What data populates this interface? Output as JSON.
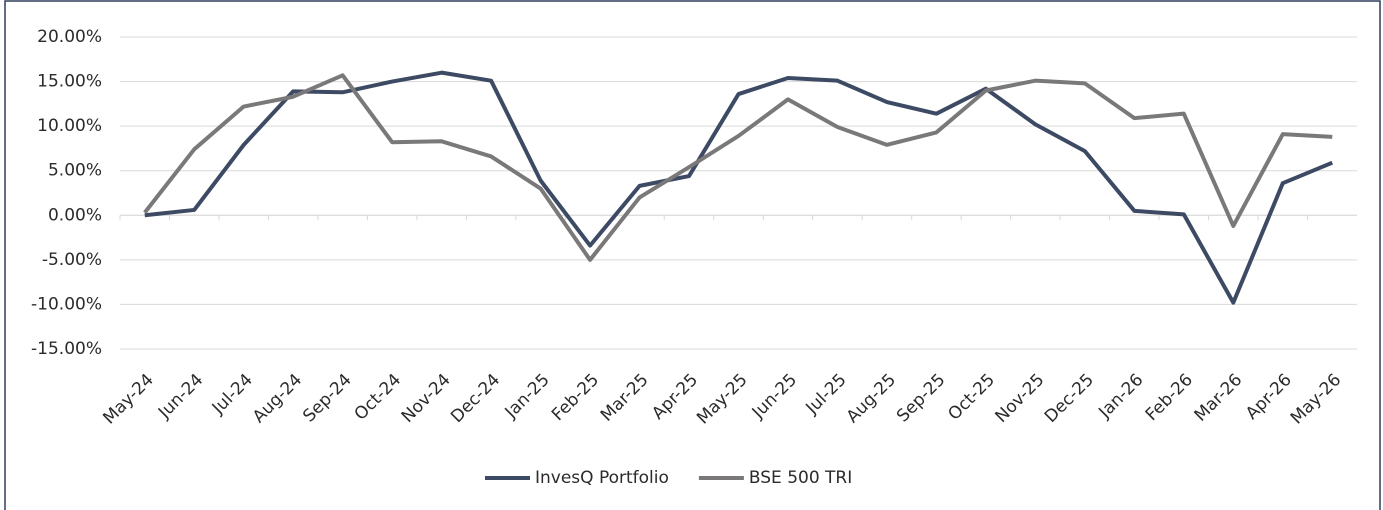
{
  "chart_data": {
    "type": "line",
    "categories": [
      "May-24",
      "Jun-24",
      "Jul-24",
      "Aug-24",
      "Sep-24",
      "Oct-24",
      "Nov-24",
      "Dec-24",
      "Jan-25",
      "Feb-25",
      "Mar-25",
      "Apr-25",
      "May-25",
      "Jun-25",
      "Jul-25",
      "Aug-25",
      "Sep-25",
      "Oct-25",
      "Nov-25",
      "Dec-25",
      "Jan-26",
      "Feb-26",
      "Mar-26",
      "Apr-26",
      "May-26"
    ],
    "series": [
      {
        "name": "InvesQ Portfolio",
        "color": "#3d4a63",
        "values": [
          0.0,
          0.6,
          7.9,
          13.9,
          13.8,
          15.0,
          16.0,
          15.1,
          3.9,
          -3.4,
          3.3,
          4.4,
          13.6,
          15.4,
          15.1,
          12.7,
          11.4,
          14.2,
          10.2,
          7.2,
          0.5,
          0.1,
          -9.8,
          3.6,
          5.9
        ]
      },
      {
        "name": "BSE 500 TRI",
        "color": "#7a7878",
        "values": [
          0.3,
          7.4,
          12.2,
          13.3,
          15.7,
          8.2,
          8.3,
          6.6,
          3.0,
          -5.0,
          2.0,
          5.4,
          8.9,
          13.0,
          9.9,
          7.9,
          9.3,
          14.0,
          15.1,
          14.8,
          10.9,
          11.4,
          -1.2,
          9.1,
          8.8
        ]
      }
    ],
    "ylim": [
      -15,
      20
    ],
    "yticks": [
      {
        "value": -15,
        "label": "-15.00%"
      },
      {
        "value": -10,
        "label": "-10.00%"
      },
      {
        "value": -5,
        "label": "-5.00%"
      },
      {
        "value": 0,
        "label": "0.00%"
      },
      {
        "value": 5,
        "label": "5.00%"
      },
      {
        "value": 10,
        "label": "10.00%"
      },
      {
        "value": 15,
        "label": "15.00%"
      },
      {
        "value": 20,
        "label": "20.00%"
      }
    ],
    "grid": true,
    "legend": "bottom"
  }
}
